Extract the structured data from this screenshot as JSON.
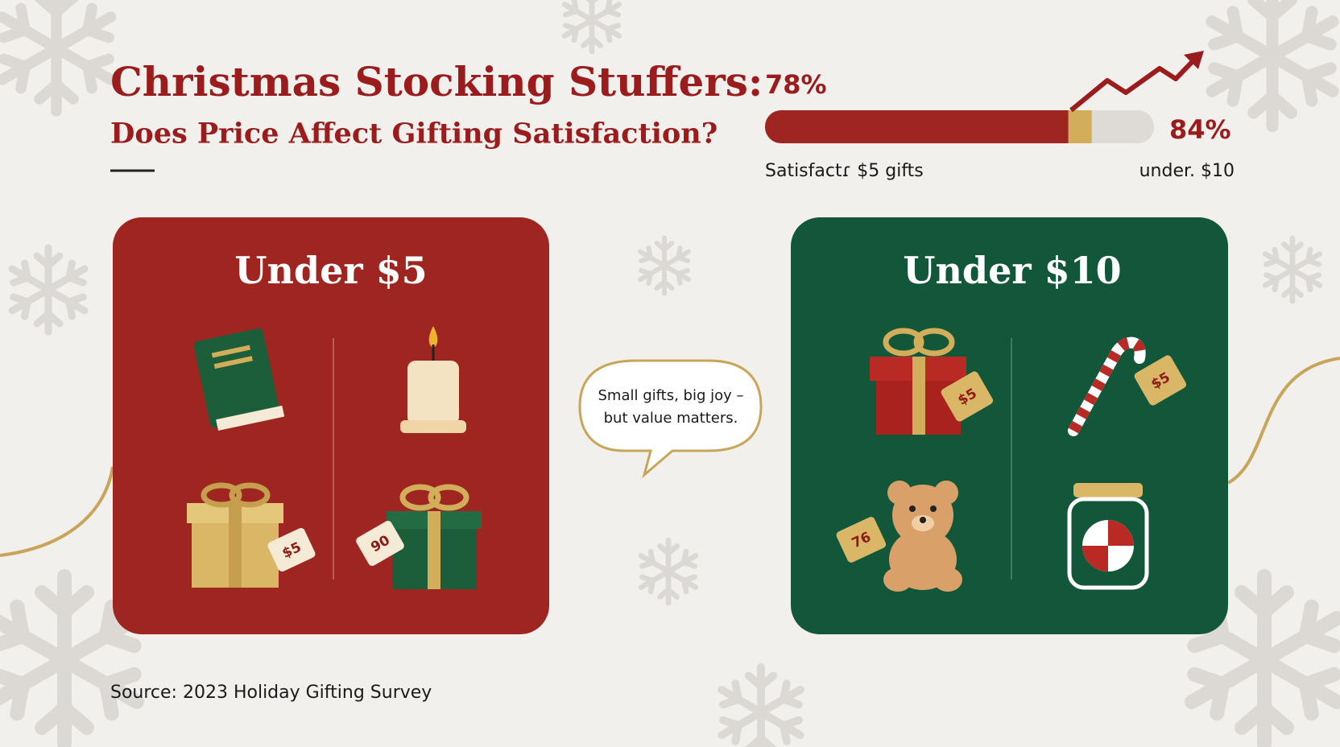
{
  "header": {
    "title": "Christmas Stocking Stuffers:",
    "subtitle": "Does Price Affect Gifting Satisfaction?"
  },
  "satisfaction": {
    "segments": [
      {
        "value": 78,
        "label": "78%"
      },
      {
        "value": 84,
        "label": "84%"
      }
    ],
    "xlim": [
      0,
      100
    ],
    "caption_left": "Satisfactɾ $5 gifts",
    "caption_right": "under. $10"
  },
  "panels": [
    {
      "title": "Under $5",
      "tags": [
        "$5",
        "90"
      ]
    },
    {
      "title": "Under $10",
      "tags": [
        "$5",
        "$5",
        "76"
      ]
    }
  ],
  "callout": [
    "Small gifts, big joy –",
    "but value matters."
  ],
  "source": "Source: 2023 Holiday Gifting Survey"
}
